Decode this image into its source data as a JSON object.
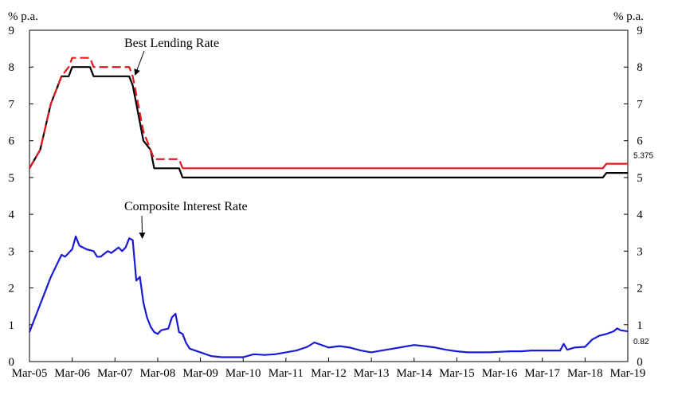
{
  "chart_data": {
    "type": "line",
    "y_unit_left": "% p.a.",
    "y_unit_right": "% p.a.",
    "ylim": [
      0,
      9
    ],
    "yticks": [
      "0",
      "1",
      "2",
      "3",
      "4",
      "5",
      "6",
      "7",
      "8",
      "9"
    ],
    "xlim": [
      "2005-03",
      "2019-03"
    ],
    "xticks": [
      "Mar-05",
      "Mar-06",
      "Mar-07",
      "Mar-08",
      "Mar-09",
      "Mar-10",
      "Mar-11",
      "Mar-12",
      "Mar-13",
      "Mar-14",
      "Mar-15",
      "Mar-16",
      "Mar-17",
      "Mar-18",
      "Mar-19"
    ],
    "grid": false,
    "annotations": [
      {
        "text": "Best Lending Rate",
        "points_to": "2007-08"
      },
      {
        "text": "Composite Interest Rate",
        "points_to": "2007-08"
      }
    ],
    "end_labels": [
      {
        "text": "5.375",
        "series": "red",
        "value": 5.375
      },
      {
        "text": "0.82",
        "series": "blue",
        "value": 0.82
      }
    ],
    "series": [
      {
        "color": "#000000",
        "style": "solid",
        "points": [
          [
            "2005-03",
            5.25
          ],
          [
            "2005-06",
            5.75
          ],
          [
            "2005-09",
            7.0
          ],
          [
            "2005-12",
            7.75
          ],
          [
            "2006-02",
            7.75
          ],
          [
            "2006-03",
            8.0
          ],
          [
            "2006-08",
            8.0
          ],
          [
            "2006-09",
            7.75
          ],
          [
            "2007-07",
            7.75
          ],
          [
            "2007-08",
            7.5
          ],
          [
            "2007-09",
            7.0
          ],
          [
            "2007-11",
            6.0
          ],
          [
            "2008-01",
            5.75
          ],
          [
            "2008-02",
            5.25
          ],
          [
            "2008-09",
            5.25
          ],
          [
            "2008-10",
            5.0
          ],
          [
            "2018-08",
            5.0
          ],
          [
            "2018-09",
            5.125
          ],
          [
            "2019-03",
            5.125
          ]
        ]
      },
      {
        "color": "#e4161b",
        "style": "dashed",
        "points": [
          [
            "2005-03",
            5.25
          ],
          [
            "2005-06",
            5.75
          ],
          [
            "2005-09",
            7.0
          ],
          [
            "2005-12",
            7.75
          ],
          [
            "2006-02",
            8.0
          ],
          [
            "2006-03",
            8.25
          ],
          [
            "2006-08",
            8.25
          ],
          [
            "2006-09",
            8.0
          ],
          [
            "2007-07",
            8.0
          ],
          [
            "2007-08",
            7.75
          ],
          [
            "2007-09",
            7.25
          ],
          [
            "2007-11",
            6.25
          ],
          [
            "2008-01",
            5.75
          ],
          [
            "2008-02",
            5.5
          ],
          [
            "2008-09",
            5.5
          ],
          [
            "2008-10",
            5.25
          ]
        ]
      },
      {
        "color": "#e4161b",
        "style": "solid",
        "points": [
          [
            "2008-10",
            5.25
          ],
          [
            "2018-08",
            5.25
          ],
          [
            "2018-09",
            5.375
          ],
          [
            "2019-03",
            5.375
          ]
        ]
      },
      {
        "color": "#1a1ad6",
        "style": "solid",
        "points": [
          [
            "2005-03",
            0.8
          ],
          [
            "2005-05",
            1.3
          ],
          [
            "2005-07",
            1.8
          ],
          [
            "2005-09",
            2.3
          ],
          [
            "2005-11",
            2.7
          ],
          [
            "2005-12",
            2.9
          ],
          [
            "2006-01",
            2.85
          ],
          [
            "2006-03",
            3.05
          ],
          [
            "2006-04",
            3.4
          ],
          [
            "2006-05",
            3.15
          ],
          [
            "2006-07",
            3.05
          ],
          [
            "2006-09",
            3.0
          ],
          [
            "2006-10",
            2.85
          ],
          [
            "2006-11",
            2.85
          ],
          [
            "2007-01",
            3.0
          ],
          [
            "2007-02",
            2.95
          ],
          [
            "2007-04",
            3.1
          ],
          [
            "2007-05",
            3.0
          ],
          [
            "2007-06",
            3.1
          ],
          [
            "2007-07",
            3.35
          ],
          [
            "2007-08",
            3.3
          ],
          [
            "2007-09",
            2.2
          ],
          [
            "2007-10",
            2.3
          ],
          [
            "2007-11",
            1.6
          ],
          [
            "2007-12",
            1.2
          ],
          [
            "2008-01",
            0.95
          ],
          [
            "2008-02",
            0.8
          ],
          [
            "2008-03",
            0.75
          ],
          [
            "2008-04",
            0.85
          ],
          [
            "2008-06",
            0.9
          ],
          [
            "2008-07",
            1.2
          ],
          [
            "2008-08",
            1.3
          ],
          [
            "2008-09",
            0.8
          ],
          [
            "2008-10",
            0.75
          ],
          [
            "2008-11",
            0.5
          ],
          [
            "2008-12",
            0.35
          ],
          [
            "2009-03",
            0.25
          ],
          [
            "2009-06",
            0.15
          ],
          [
            "2009-09",
            0.12
          ],
          [
            "2010-03",
            0.12
          ],
          [
            "2010-06",
            0.2
          ],
          [
            "2010-09",
            0.18
          ],
          [
            "2010-12",
            0.2
          ],
          [
            "2011-03",
            0.25
          ],
          [
            "2011-06",
            0.3
          ],
          [
            "2011-09",
            0.4
          ],
          [
            "2011-11",
            0.52
          ],
          [
            "2012-01",
            0.45
          ],
          [
            "2012-03",
            0.38
          ],
          [
            "2012-06",
            0.42
          ],
          [
            "2012-09",
            0.38
          ],
          [
            "2012-12",
            0.3
          ],
          [
            "2013-03",
            0.25
          ],
          [
            "2013-06",
            0.3
          ],
          [
            "2013-09",
            0.35
          ],
          [
            "2013-12",
            0.4
          ],
          [
            "2014-03",
            0.45
          ],
          [
            "2014-06",
            0.42
          ],
          [
            "2014-09",
            0.38
          ],
          [
            "2014-12",
            0.32
          ],
          [
            "2015-03",
            0.28
          ],
          [
            "2015-06",
            0.25
          ],
          [
            "2015-12",
            0.25
          ],
          [
            "2016-06",
            0.28
          ],
          [
            "2016-09",
            0.28
          ],
          [
            "2016-12",
            0.3
          ],
          [
            "2017-06",
            0.3
          ],
          [
            "2017-08",
            0.3
          ],
          [
            "2017-09",
            0.48
          ],
          [
            "2017-10",
            0.32
          ],
          [
            "2017-12",
            0.38
          ],
          [
            "2018-03",
            0.4
          ],
          [
            "2018-05",
            0.6
          ],
          [
            "2018-07",
            0.7
          ],
          [
            "2018-09",
            0.75
          ],
          [
            "2018-11",
            0.82
          ],
          [
            "2018-12",
            0.9
          ],
          [
            "2019-01",
            0.85
          ],
          [
            "2019-03",
            0.82
          ]
        ]
      }
    ]
  }
}
